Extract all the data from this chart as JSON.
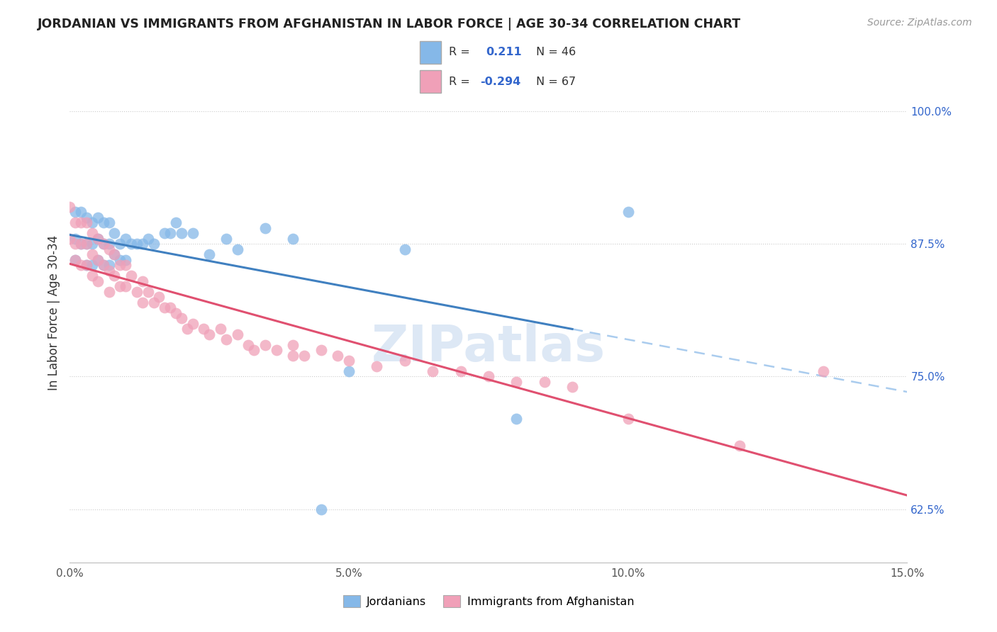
{
  "title": "JORDANIAN VS IMMIGRANTS FROM AFGHANISTAN IN LABOR FORCE | AGE 30-34 CORRELATION CHART",
  "source": "Source: ZipAtlas.com",
  "ylabel": "In Labor Force | Age 30-34",
  "xlim": [
    0.0,
    0.15
  ],
  "ylim": [
    0.575,
    1.045
  ],
  "yticks": [
    0.625,
    0.75,
    0.875,
    1.0
  ],
  "ytick_labels": [
    "62.5%",
    "75.0%",
    "87.5%",
    "100.0%"
  ],
  "xticks": [
    0.0,
    0.05,
    0.1,
    0.15
  ],
  "xtick_labels": [
    "0.0%",
    "5.0%",
    "10.0%",
    "15.0%"
  ],
  "blue_color": "#85B8E8",
  "pink_color": "#F0A0B8",
  "blue_line_color": "#4080C0",
  "pink_line_color": "#E05070",
  "dashed_line_color": "#AACCEE",
  "jordanians_x": [
    0.001,
    0.001,
    0.001,
    0.002,
    0.002,
    0.003,
    0.003,
    0.003,
    0.004,
    0.004,
    0.004,
    0.005,
    0.005,
    0.005,
    0.006,
    0.006,
    0.006,
    0.007,
    0.007,
    0.007,
    0.008,
    0.008,
    0.009,
    0.009,
    0.01,
    0.01,
    0.011,
    0.012,
    0.013,
    0.014,
    0.015,
    0.017,
    0.018,
    0.019,
    0.02,
    0.022,
    0.025,
    0.028,
    0.03,
    0.035,
    0.04,
    0.045,
    0.05,
    0.06,
    0.08,
    0.1
  ],
  "jordanians_y": [
    0.905,
    0.88,
    0.86,
    0.905,
    0.875,
    0.9,
    0.875,
    0.855,
    0.895,
    0.875,
    0.855,
    0.9,
    0.88,
    0.86,
    0.895,
    0.875,
    0.855,
    0.895,
    0.875,
    0.855,
    0.885,
    0.865,
    0.875,
    0.86,
    0.88,
    0.86,
    0.875,
    0.875,
    0.875,
    0.88,
    0.875,
    0.885,
    0.885,
    0.895,
    0.885,
    0.885,
    0.865,
    0.88,
    0.87,
    0.89,
    0.88,
    0.625,
    0.755,
    0.87,
    0.71,
    0.905
  ],
  "afghanistan_x": [
    0.0,
    0.0,
    0.001,
    0.001,
    0.001,
    0.002,
    0.002,
    0.002,
    0.003,
    0.003,
    0.003,
    0.004,
    0.004,
    0.004,
    0.005,
    0.005,
    0.005,
    0.006,
    0.006,
    0.007,
    0.007,
    0.007,
    0.008,
    0.008,
    0.009,
    0.009,
    0.01,
    0.01,
    0.011,
    0.012,
    0.013,
    0.013,
    0.014,
    0.015,
    0.016,
    0.017,
    0.018,
    0.019,
    0.02,
    0.021,
    0.022,
    0.024,
    0.025,
    0.027,
    0.028,
    0.03,
    0.032,
    0.033,
    0.035,
    0.037,
    0.04,
    0.04,
    0.042,
    0.045,
    0.048,
    0.05,
    0.055,
    0.06,
    0.065,
    0.07,
    0.075,
    0.08,
    0.085,
    0.09,
    0.1,
    0.12,
    0.135
  ],
  "afghanistan_y": [
    0.91,
    0.88,
    0.895,
    0.875,
    0.86,
    0.895,
    0.875,
    0.855,
    0.895,
    0.875,
    0.855,
    0.885,
    0.865,
    0.845,
    0.88,
    0.86,
    0.84,
    0.875,
    0.855,
    0.87,
    0.85,
    0.83,
    0.865,
    0.845,
    0.855,
    0.835,
    0.855,
    0.835,
    0.845,
    0.83,
    0.84,
    0.82,
    0.83,
    0.82,
    0.825,
    0.815,
    0.815,
    0.81,
    0.805,
    0.795,
    0.8,
    0.795,
    0.79,
    0.795,
    0.785,
    0.79,
    0.78,
    0.775,
    0.78,
    0.775,
    0.78,
    0.77,
    0.77,
    0.775,
    0.77,
    0.765,
    0.76,
    0.765,
    0.755,
    0.755,
    0.75,
    0.745,
    0.745,
    0.74,
    0.71,
    0.685,
    0.755
  ],
  "background_color": "#FFFFFF",
  "grid_color": "#CCCCCC"
}
